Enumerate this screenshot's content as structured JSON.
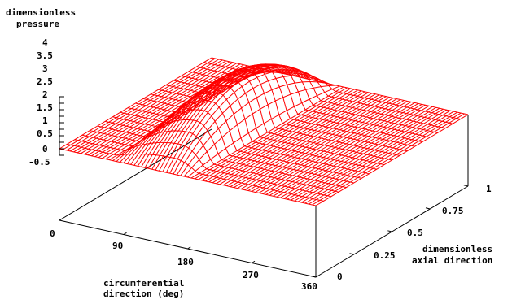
{
  "chart_data": {
    "type": "surface",
    "zlabel": [
      "dimensionless",
      "pressure"
    ],
    "xlabel": [
      "circumferential",
      "direction (deg)"
    ],
    "ylabel": [
      "dimensionless",
      "axial direction"
    ],
    "xticks": [
      "0",
      "90",
      "180",
      "270",
      "360"
    ],
    "yticks": [
      "0",
      "0.25",
      "0.5",
      "0.75",
      "1"
    ],
    "zticks": [
      "4",
      "3.5",
      "3",
      "2.5",
      "2",
      "1.5",
      "1",
      "0.5",
      "0",
      "-0.5"
    ],
    "xlim": [
      0,
      360
    ],
    "ylim": [
      0,
      1
    ],
    "zlim": [
      -0.5,
      4
    ],
    "surface_color": "#ff0000",
    "mesh": {
      "x_count": 73,
      "y_count": 21
    },
    "pressure_model": {
      "description": "positive pressure lobe over roughly 72-182 deg, peak near 150 deg, parabolic in axial direction, zero elsewhere",
      "x_start": 72,
      "x_end": 182,
      "x_peak": 150,
      "peak": 4.0
    }
  }
}
